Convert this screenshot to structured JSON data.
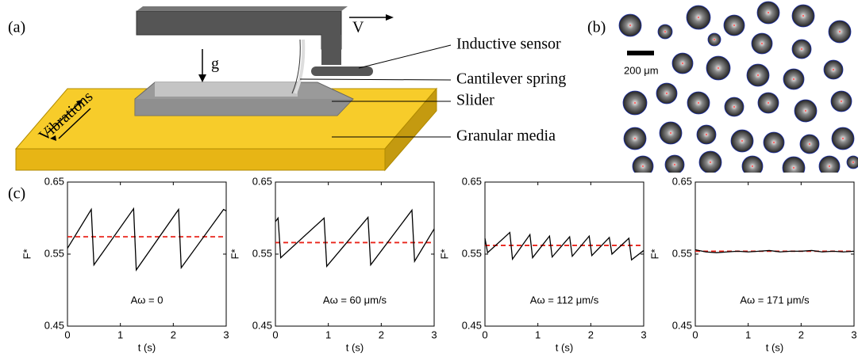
{
  "diagram": {
    "panel_label": "(a)",
    "velocity": "V",
    "gravity": "g",
    "vibrations": "Vibrations",
    "labels": [
      "Inductive sensor",
      "Cantilever spring",
      "Slider",
      "Granular media"
    ]
  },
  "micrograph": {
    "panel_label": "(b)",
    "scale_label": "200 μm"
  },
  "charts_label": "(c)",
  "chart_data": [
    {
      "type": "line",
      "annotation": "Aω = 0",
      "xlabel": "t (s)",
      "ylabel": "F*",
      "x": [
        0,
        0.45,
        0.5,
        1.25,
        1.3,
        2.1,
        2.15,
        2.95,
        3
      ],
      "series": [
        {
          "color": "#000000",
          "values": [
            0.558,
            0.612,
            0.535,
            0.613,
            0.528,
            0.612,
            0.531,
            0.612,
            0.61
          ]
        }
      ],
      "reference_line": 0.574,
      "reference_color": "#e8231a",
      "xlim": [
        0,
        3
      ],
      "ylim": [
        0.45,
        0.65
      ],
      "xticks": [
        0,
        1,
        2,
        3
      ],
      "yticks": [
        0.45,
        0.55,
        0.65
      ]
    },
    {
      "type": "line",
      "annotation": "Aω = 60 μm/s",
      "xlabel": "t (s)",
      "ylabel": "F*",
      "x": [
        0,
        0.05,
        0.1,
        0.92,
        0.97,
        1.75,
        1.8,
        2.58,
        2.63,
        3
      ],
      "series": [
        {
          "color": "#000000",
          "values": [
            0.595,
            0.6,
            0.545,
            0.6,
            0.533,
            0.601,
            0.535,
            0.611,
            0.54,
            0.585
          ]
        }
      ],
      "reference_line": 0.566,
      "reference_color": "#e8231a",
      "xlim": [
        0,
        3
      ],
      "ylim": [
        0.45,
        0.65
      ],
      "xticks": [
        0,
        1,
        2,
        3
      ],
      "yticks": [
        0.45,
        0.55,
        0.65
      ]
    },
    {
      "type": "line",
      "annotation": "Aω = 112 μm/s",
      "xlabel": "t (s)",
      "ylabel": "F*",
      "x": [
        0,
        0.05,
        0.47,
        0.52,
        0.85,
        0.9,
        1.22,
        1.27,
        1.6,
        1.65,
        1.97,
        2.02,
        2.35,
        2.4,
        2.72,
        2.77,
        3
      ],
      "series": [
        {
          "color": "#000000",
          "values": [
            0.572,
            0.552,
            0.58,
            0.543,
            0.577,
            0.545,
            0.575,
            0.546,
            0.574,
            0.547,
            0.575,
            0.548,
            0.573,
            0.55,
            0.572,
            0.542,
            0.555
          ]
        }
      ],
      "reference_line": 0.562,
      "reference_color": "#e8231a",
      "xlim": [
        0,
        3
      ],
      "ylim": [
        0.45,
        0.65
      ],
      "xticks": [
        0,
        1,
        2,
        3
      ],
      "yticks": [
        0.45,
        0.55,
        0.65
      ]
    },
    {
      "type": "line",
      "annotation": "Aω = 171 μm/s",
      "xlabel": "t (s)",
      "ylabel": "F*",
      "x": [
        0,
        0.2,
        0.4,
        0.6,
        0.8,
        1,
        1.2,
        1.4,
        1.6,
        1.8,
        2,
        2.2,
        2.4,
        2.6,
        2.8,
        3
      ],
      "series": [
        {
          "color": "#000000",
          "values": [
            0.556,
            0.553,
            0.552,
            0.553,
            0.554,
            0.553,
            0.554,
            0.555,
            0.553,
            0.554,
            0.554,
            0.555,
            0.553,
            0.554,
            0.553,
            0.554
          ]
        }
      ],
      "reference_line": 0.554,
      "reference_color": "#e8231a",
      "xlim": [
        0,
        3
      ],
      "ylim": [
        0.45,
        0.65
      ],
      "xticks": [
        0,
        1,
        2,
        3
      ],
      "yticks": [
        0.45,
        0.55,
        0.65
      ]
    }
  ]
}
